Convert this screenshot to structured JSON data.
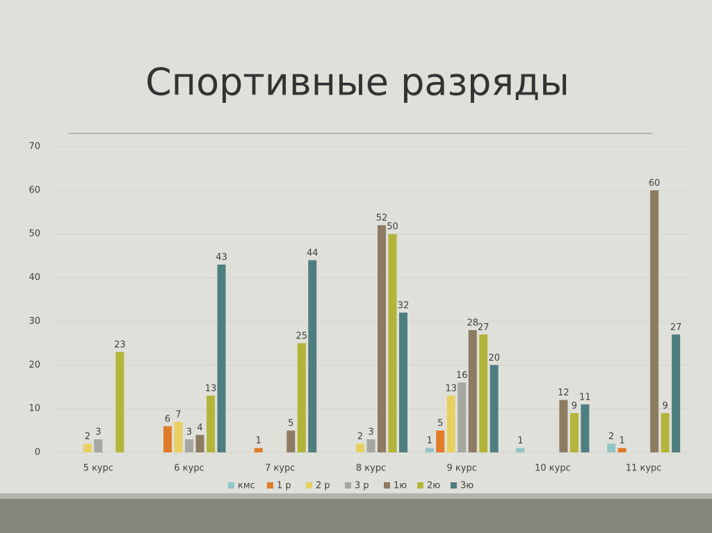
{
  "chart_data": {
    "type": "bar",
    "title": "Спортивные разряды",
    "categories": [
      "5 курс",
      "6 курс",
      "7 курс",
      "8 курс",
      "9 курс",
      "10 курс",
      "11 курс"
    ],
    "series": [
      {
        "name": "кмс",
        "color": "#93c5c6",
        "values": [
          null,
          null,
          null,
          null,
          1,
          1,
          2
        ]
      },
      {
        "name": "1 р",
        "color": "#e07b2a",
        "values": [
          null,
          6,
          1,
          null,
          5,
          null,
          1
        ]
      },
      {
        "name": "2 р",
        "color": "#e9d062",
        "values": [
          2,
          7,
          null,
          2,
          13,
          null,
          null
        ]
      },
      {
        "name": "3 р",
        "color": "#a7a7a1",
        "values": [
          3,
          3,
          null,
          3,
          16,
          null,
          null
        ]
      },
      {
        "name": "1ю",
        "color": "#8e7b64",
        "values": [
          null,
          4,
          5,
          52,
          28,
          12,
          60
        ]
      },
      {
        "name": "2ю",
        "color": "#b2b53a",
        "values": [
          23,
          13,
          25,
          50,
          27,
          9,
          9
        ]
      },
      {
        "name": "3ю",
        "color": "#4f7e80",
        "values": [
          null,
          43,
          44,
          32,
          20,
          11,
          27
        ]
      }
    ],
    "ylim": [
      0,
      70
    ],
    "yticks": [
      0,
      10,
      20,
      30,
      40,
      50,
      60,
      70
    ],
    "grid": true,
    "legend": "bottom"
  }
}
